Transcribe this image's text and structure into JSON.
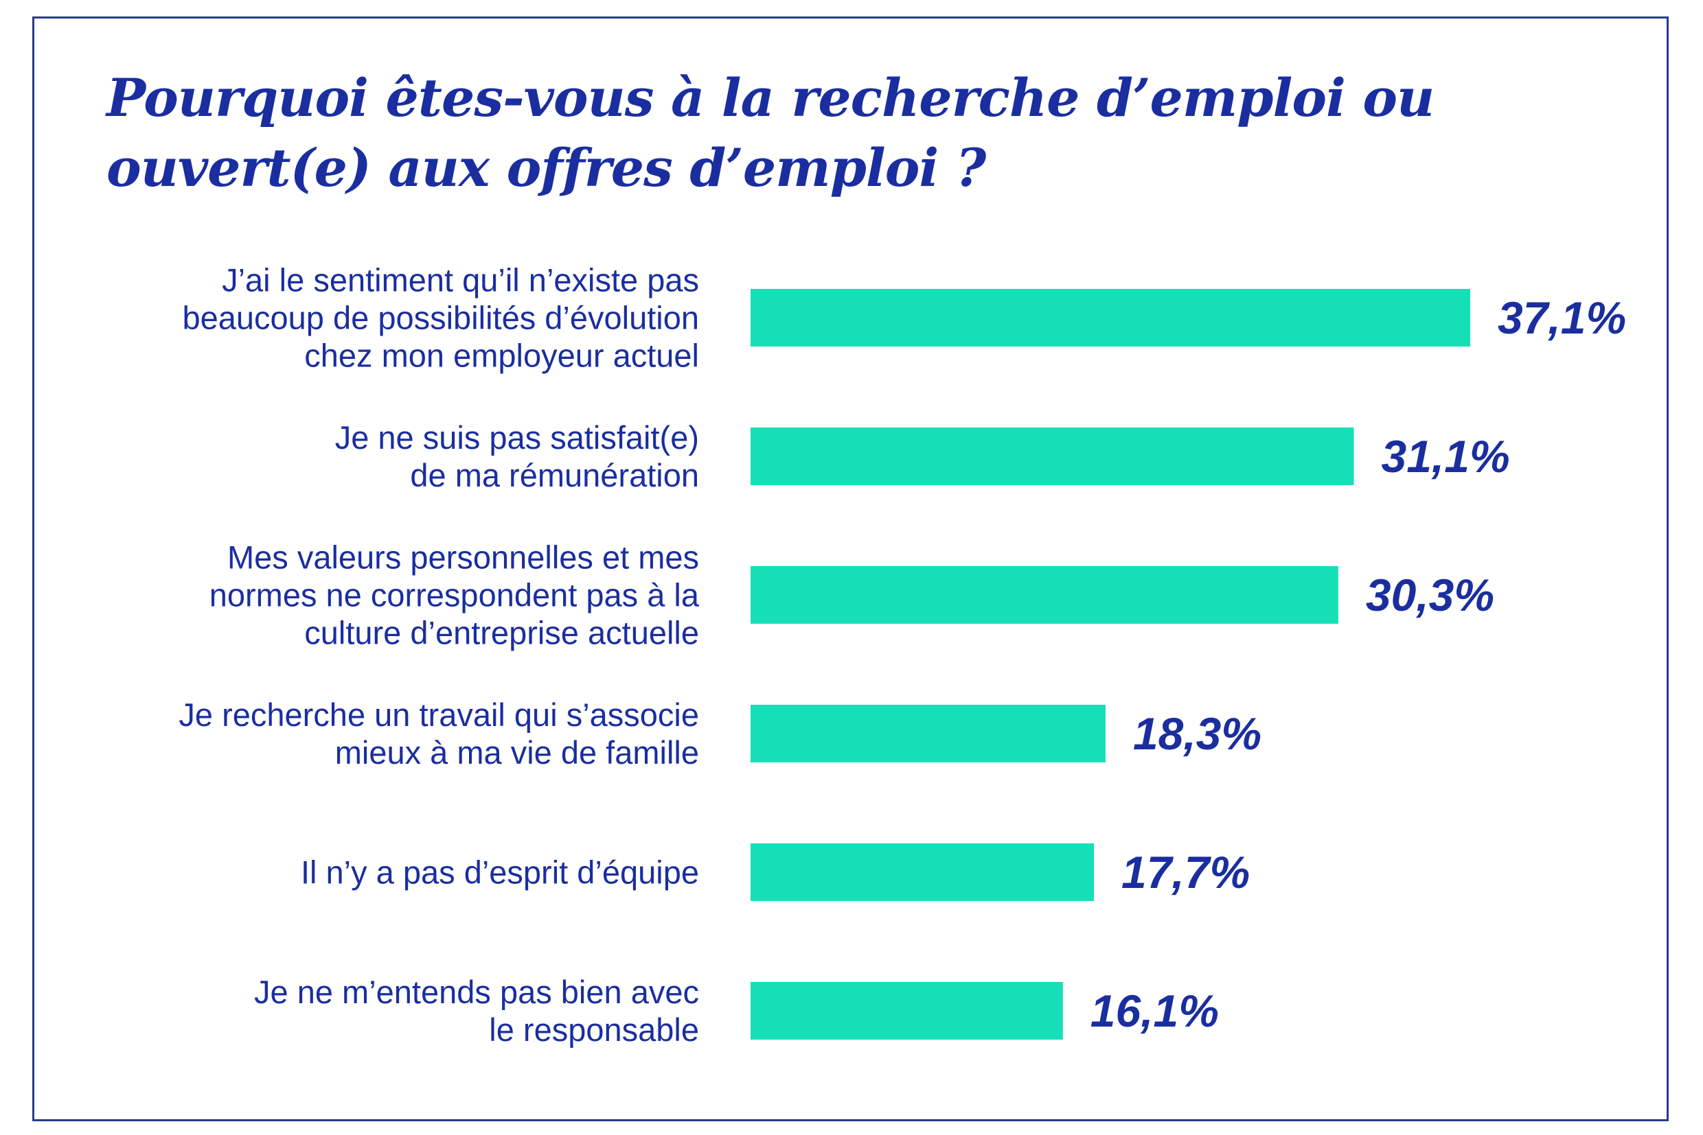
{
  "chart_data": {
    "type": "bar",
    "orientation": "horizontal",
    "title": "Pourquoi êtes-vous à la recherche d’emploi ou ouvert(e) aux offres d’emploi ?",
    "title_lines": [
      "Pourquoi êtes-vous à la recherche d’emploi ou",
      "ouvert(e) aux offres d’emploi ?"
    ],
    "unit": "%",
    "xlim": [
      0,
      37.1
    ],
    "grid": false,
    "legend": "none",
    "bar_color": "#16dfb8",
    "text_color": "#1a2ea0",
    "border_color": "#2a3a8c",
    "categories": [
      [
        "J’ai le sentiment qu’il n’existe pas",
        "beaucoup de possibilités d’évolution",
        "chez mon employeur actuel"
      ],
      [
        "Je ne suis pas satisfait(e)",
        "de ma rémunération"
      ],
      [
        "Mes valeurs personnelles et mes",
        "normes ne correspondent pas à la",
        "culture d’entreprise actuelle"
      ],
      [
        "Je recherche un travail qui s’associe",
        "mieux à ma vie de famille"
      ],
      [
        "Il n’y a pas d’esprit d’équipe"
      ],
      [
        "Je ne m’entends pas bien avec",
        "le responsable"
      ]
    ],
    "values": [
      37.1,
      31.1,
      30.3,
      18.3,
      17.7,
      16.1
    ],
    "value_labels": [
      "37,1%",
      "31,1%",
      "30,3%",
      "18,3%",
      "17,7%",
      "16,1%"
    ]
  }
}
